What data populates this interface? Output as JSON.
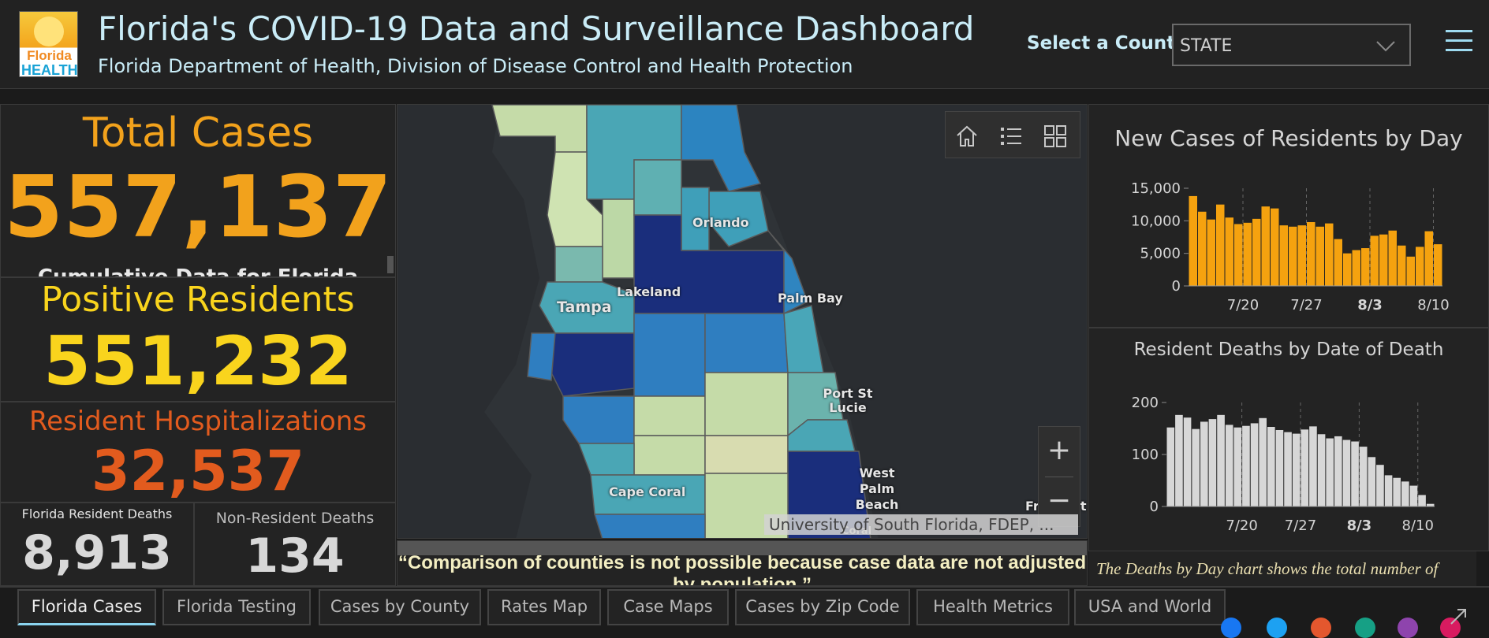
{
  "header": {
    "logo_line1": "Florida",
    "logo_line2": "HEALTH",
    "title": "Florida's COVID-19 Data and Surveillance Dashboard",
    "subtitle": "Florida Department of Health, Division of Disease Control and Health Protection",
    "select_label": "Select a County",
    "select_value": "STATE"
  },
  "stats": {
    "total_cases_label": "Total Cases",
    "total_cases_value": "557,137",
    "cumulative_note": "Cumulative Data for Florida",
    "positive_residents_label": "Positive Residents",
    "positive_residents_value": "551,232",
    "hospitalizations_label": "Resident Hospitalizations",
    "hospitalizations_value": "32,537",
    "resident_deaths_label": "Florida Resident Deaths",
    "resident_deaths_value": "8,913",
    "nonresident_deaths_label": "Non-Resident Deaths",
    "nonresident_deaths_value": "134"
  },
  "map": {
    "cities": [
      "Orlando",
      "Lakeland",
      "Tampa",
      "Palm Bay",
      "Port St Lucie",
      "West Palm Beach",
      "Cape Coral",
      "Freeport",
      "Coral"
    ],
    "attribution": "University of South Florida, FDEP, ...",
    "zoom_in": "+",
    "zoom_out": "−",
    "tools": [
      "home-icon",
      "legend-list-icon",
      "basemap-gallery-icon"
    ]
  },
  "quote": "“Comparison of counties is not possible because case data are not adjusted by population.”",
  "note": "The Deaths by Day chart shows the total number of",
  "colors": {
    "total": "#f2a21c",
    "positive": "#f9d41d",
    "hosp": "#e25b1e",
    "bar_cases": "#f5a20f",
    "bar_deaths": "#d7d7d7"
  },
  "chart_data": [
    {
      "type": "bar",
      "title": "New Cases of Residents by Day",
      "ylim": [
        0,
        15000
      ],
      "yticks": [
        "15,000",
        "10,000",
        "5,000",
        "0"
      ],
      "ytick_values": [
        15000,
        10000,
        5000,
        0
      ],
      "xtick_labels": [
        "7/20",
        "7/27",
        "8/3",
        "8/10"
      ],
      "xtick_index": [
        6,
        13,
        20,
        27
      ],
      "values": [
        13800,
        11400,
        10200,
        12500,
        10500,
        9500,
        9700,
        10300,
        12200,
        11900,
        9300,
        9100,
        9300,
        9800,
        9100,
        9600,
        7200,
        5000,
        5500,
        5800,
        7700,
        7900,
        8500,
        6200,
        4500,
        6000,
        8400,
        6400
      ]
    },
    {
      "type": "bar",
      "title": "Resident Deaths by Date of Death",
      "ylim": [
        0,
        200
      ],
      "yticks": [
        "200",
        "100",
        "0"
      ],
      "ytick_values": [
        200,
        100,
        0
      ],
      "xtick_labels": [
        "7/20",
        "7/27",
        "8/3",
        "8/10"
      ],
      "xtick_index": [
        9,
        16,
        23,
        30
      ],
      "values": [
        152,
        176,
        171,
        149,
        163,
        168,
        176,
        157,
        152,
        155,
        160,
        170,
        153,
        147,
        143,
        140,
        148,
        154,
        139,
        131,
        135,
        128,
        125,
        115,
        95,
        80,
        60,
        55,
        48,
        40,
        22,
        5
      ]
    }
  ],
  "tabs": [
    "Florida Cases",
    "Florida Testing",
    "Cases by County",
    "Rates Map",
    "Case Maps",
    "Cases by Zip Code",
    "Health Metrics",
    "USA and World"
  ]
}
